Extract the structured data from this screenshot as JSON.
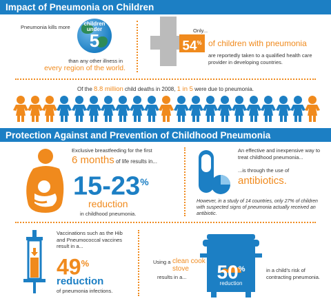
{
  "section1": {
    "title": "Impact of Pneumonia on Children",
    "kills_text": "Pneumonia kills more",
    "globe_line1": "children",
    "globe_line2": "under",
    "globe_number": "5",
    "than_text": "than any other illness in",
    "every_region": "every region of the world.",
    "only_text": "Only...",
    "pct54": "54",
    "pct54_sign": "%",
    "of_children": "of children with pneumonia",
    "reported_text": "are reportedly taken to a qualified health care provider in developing countries.",
    "deaths_pre": "Of the",
    "deaths_million": "8.8 million",
    "deaths_mid": "child deaths in 2008,",
    "deaths_ratio": "1 in 5",
    "deaths_post": "were due to pneumonia."
  },
  "section2": {
    "title": "Protection Against and Prevention of Childhood Pneumonia",
    "bf_text": "Exclusive breastfeeding for the first",
    "bf_months": "6 months",
    "bf_results": "of life results in...",
    "bf_pct": "15-23",
    "bf_pct_sign": "%",
    "bf_reduction": "reduction",
    "bf_in": "in childhood pneumonia.",
    "ab_text": "An effective and inexpensive way to treat childhood pneumonia...",
    "ab_through": "...is through the use of",
    "ab_word": "antibiotics.",
    "ab_study": "However, in a study of 14 countries, only 27% of children with suspected signs of pneumonia actually received an antibiotic.",
    "vac_text": "Vaccinations such as the Hib and Pneumococcal vaccines result in a...",
    "vac_pct": "49",
    "vac_pct_sign": "%",
    "vac_reduction": "reduction",
    "vac_of": "of pneumonia infections.",
    "stove_using": "Using a",
    "stove_clean": "clean cook stove",
    "stove_results": "results in a...",
    "stove_pct": "50",
    "stove_pct_sign": "%",
    "stove_reduction": "reduction",
    "stove_risk": "in a child's risk of contracting pneumonia."
  },
  "colors": {
    "blue": "#1c7fc4",
    "orange": "#f08a1d",
    "globe_green": "#2e8b57"
  },
  "children_row": {
    "total": 21,
    "orange_indices": [
      0,
      1,
      2,
      10,
      20
    ]
  }
}
